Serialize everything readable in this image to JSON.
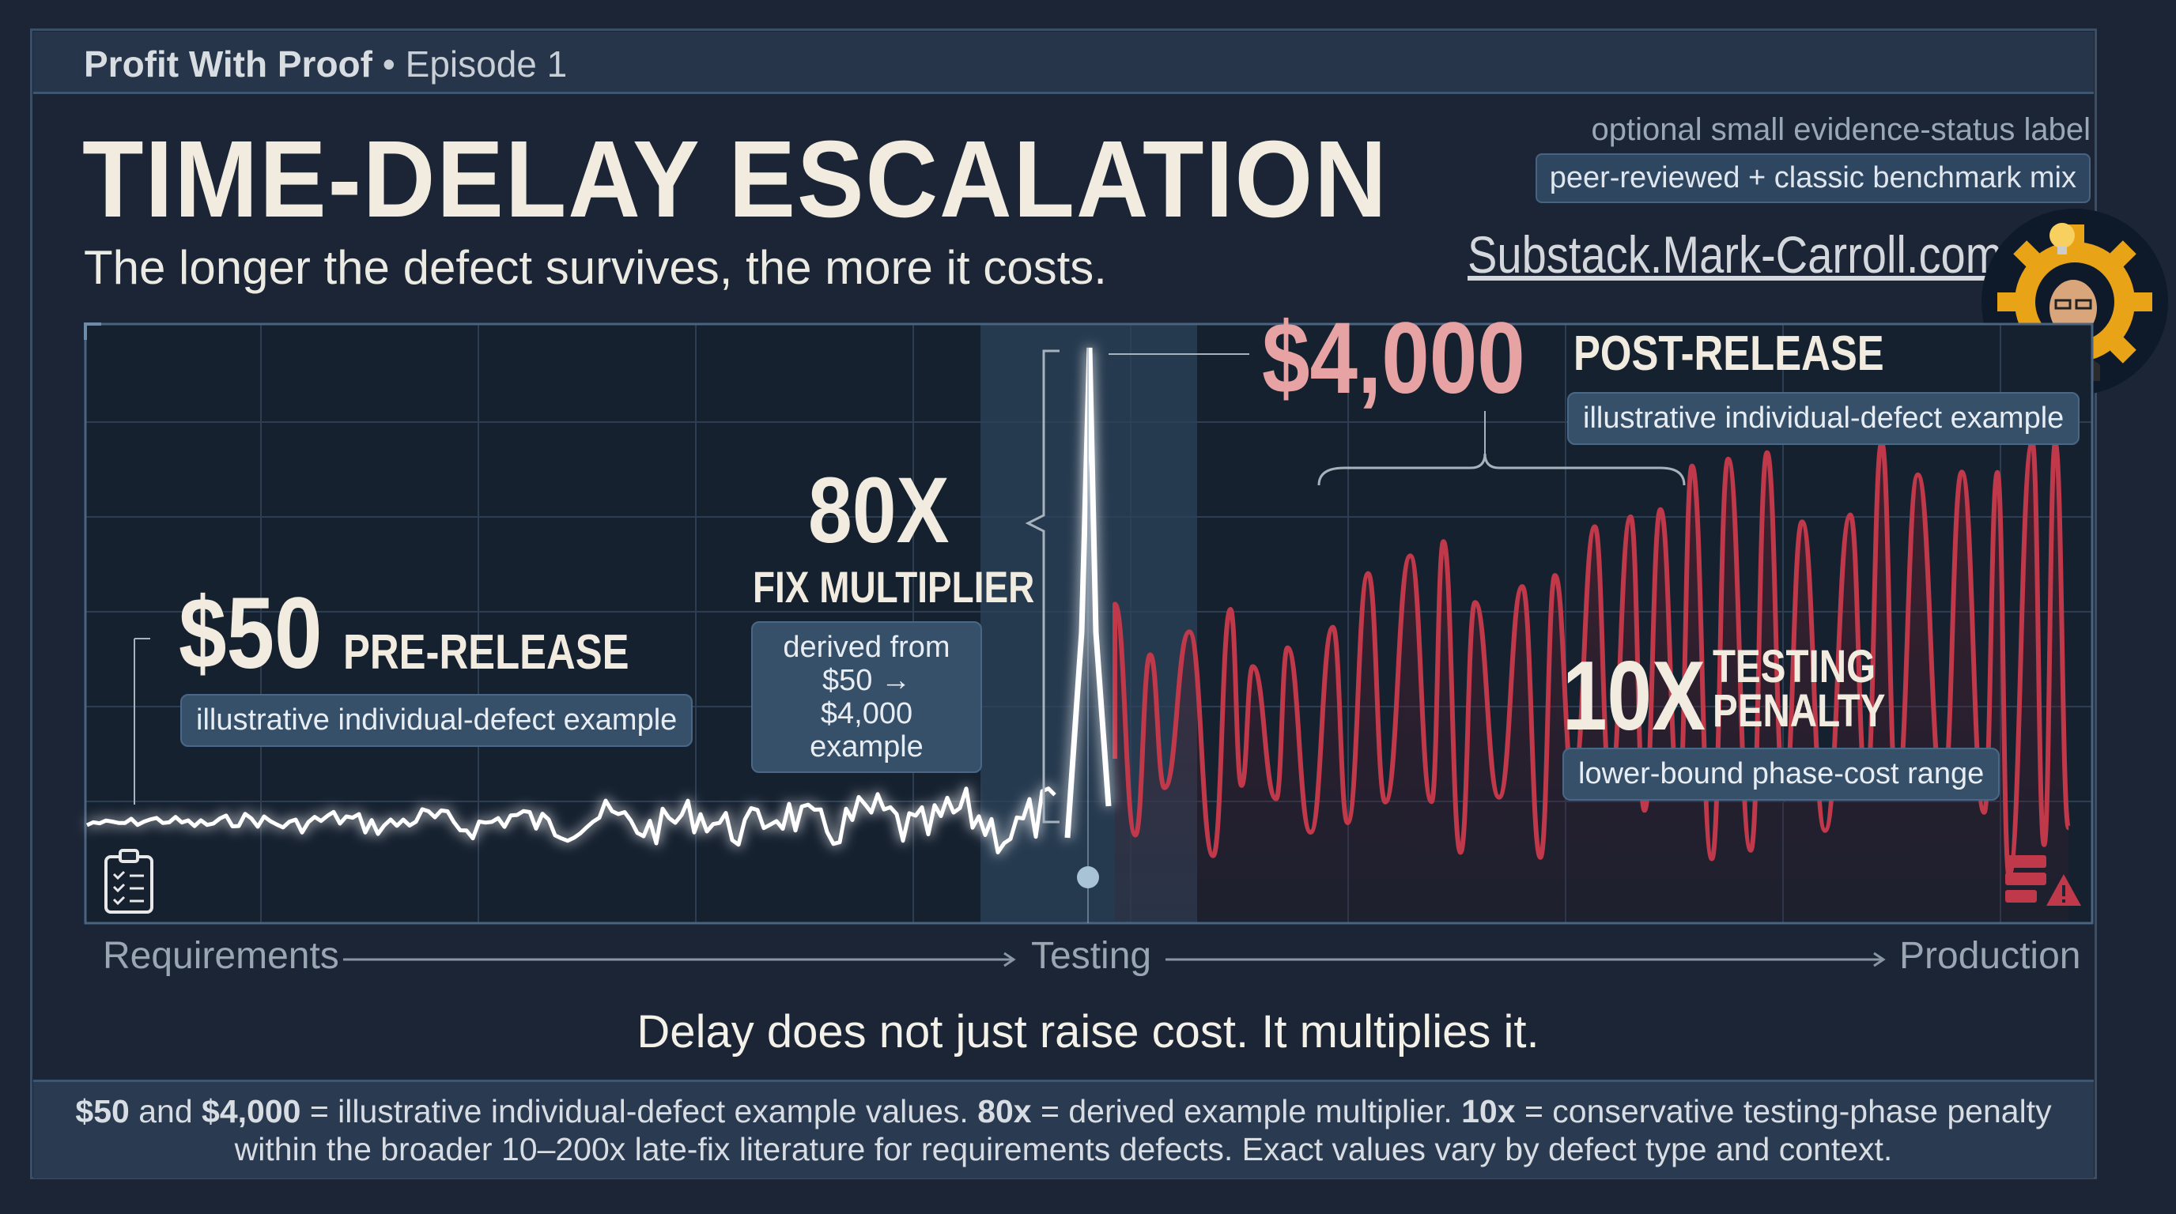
{
  "header": {
    "series": "Profit With Proof",
    "episode": "• Episode 1"
  },
  "title": "TIME-DELAY ESCALATION",
  "subtitle": "The longer the defect survives, the more it costs.",
  "evidence": {
    "note": "optional small evidence-status label",
    "badge": "peer-reviewed + classic benchmark mix"
  },
  "site_link": "Substack.Mark-Carroll.com",
  "annotations": {
    "pre_release": {
      "value": "$50",
      "label": "PRE-RELEASE",
      "note": "illustrative individual-defect example"
    },
    "multiplier": {
      "value": "80X",
      "label": "FIX MULTIPLIER",
      "note_line1": "derived from $50 →",
      "note_line2": "$4,000 example"
    },
    "post_release": {
      "value": "$4,000",
      "label": "POST-RELEASE",
      "note": "illustrative individual-defect example"
    },
    "testing_penalty": {
      "value": "10X",
      "label_line1": "TESTING",
      "label_line2": "PENALTY",
      "note": "lower-bound phase-cost range"
    }
  },
  "phases": [
    "Requirements",
    "Testing",
    "Production"
  ],
  "tagline": "Delay does not just raise cost. It multiplies it.",
  "footer": {
    "line1_parts": [
      "$50",
      " and ",
      "$4,000",
      " = illustrative individual-defect example values. ",
      "80x",
      " = derived example multiplier. ",
      "10x",
      " = conservative testing-phase penalty"
    ],
    "line2": "within the broader 10–200x late-fix literature for requirements defects. Exact values vary by defect type and context."
  },
  "colors": {
    "background": "#1b2536",
    "white_trace": "#ffffff",
    "red_trace": "#c0394a",
    "post_value": "#e7a3a3",
    "accent_gold": "#e8a317"
  },
  "icons": [
    "clipboard-checklist-icon",
    "server-warning-icon",
    "lightbulb-gear-logo-icon"
  ]
}
